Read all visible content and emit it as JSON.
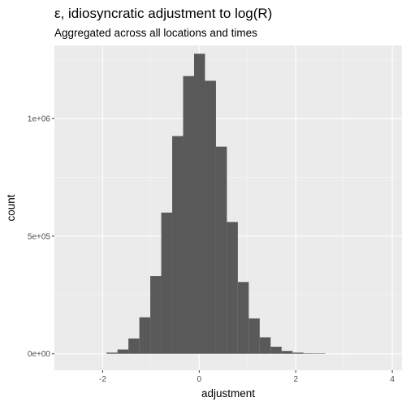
{
  "chart_data": {
    "type": "bar",
    "title": "ε, idiosyncratic adjustment to log(R)",
    "subtitle": "Aggregated across all locations and times",
    "xlabel": "adjustment",
    "ylabel": "count",
    "xlim": [
      -3.0,
      4.2
    ],
    "ylim": [
      -70000,
      1310000
    ],
    "x_ticks": [
      {
        "value": -2,
        "label": "-2"
      },
      {
        "value": 0,
        "label": "0"
      },
      {
        "value": 2,
        "label": "2"
      },
      {
        "value": 4,
        "label": "4"
      }
    ],
    "y_ticks": [
      {
        "value": 0,
        "label": "0e+00"
      },
      {
        "value": 500000,
        "label": "5e+05"
      },
      {
        "value": 1000000,
        "label": "1e+06"
      }
    ],
    "grid": true,
    "bin_width": 0.2267,
    "bins": [
      {
        "x0": -1.92,
        "count": 5000
      },
      {
        "x0": -1.6933,
        "count": 18000
      },
      {
        "x0": -1.4667,
        "count": 65000
      },
      {
        "x0": -1.24,
        "count": 155000
      },
      {
        "x0": -1.0133,
        "count": 330000
      },
      {
        "x0": -0.7867,
        "count": 600000
      },
      {
        "x0": -0.56,
        "count": 925000
      },
      {
        "x0": -0.3333,
        "count": 1180000
      },
      {
        "x0": -0.1067,
        "count": 1275000
      },
      {
        "x0": 0.12,
        "count": 1160000
      },
      {
        "x0": 0.3467,
        "count": 880000
      },
      {
        "x0": 0.5733,
        "count": 560000
      },
      {
        "x0": 0.8,
        "count": 305000
      },
      {
        "x0": 1.0267,
        "count": 150000
      },
      {
        "x0": 1.2533,
        "count": 70000
      },
      {
        "x0": 1.48,
        "count": 30000
      },
      {
        "x0": 1.7067,
        "count": 12000
      },
      {
        "x0": 1.9333,
        "count": 5000
      },
      {
        "x0": 2.16,
        "count": 2000
      },
      {
        "x0": 2.3867,
        "count": 1000
      }
    ],
    "colors": {
      "panel": "#EBEBEB",
      "grid_major": "#FFFFFF",
      "grid_minor": "#F5F5F5",
      "bar": "#595959"
    }
  }
}
